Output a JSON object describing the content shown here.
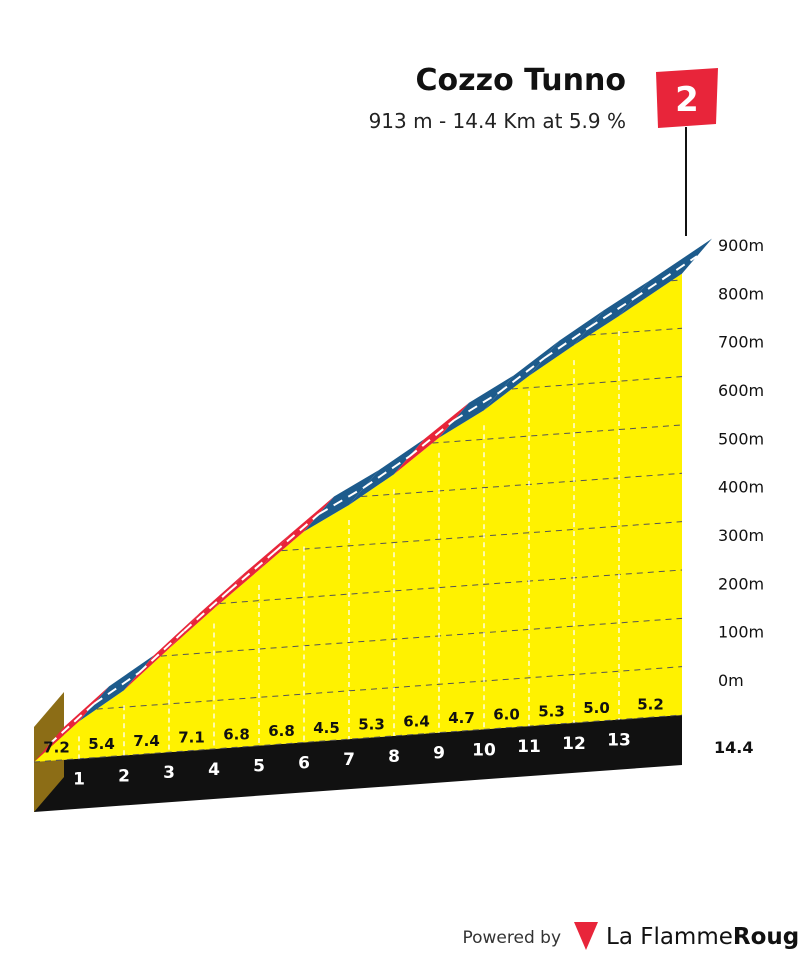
{
  "chart_data": {
    "type": "area",
    "title": "Cozzo Tunno",
    "subtitle": "913 m - 14.4 Km at 5.9 %",
    "category_badge": "2",
    "yticks": [
      "0m",
      "100m",
      "200m",
      "300m",
      "400m",
      "500m",
      "600m",
      "700m",
      "800m",
      "900m"
    ],
    "ylim": [
      0,
      913
    ],
    "xlim": [
      0,
      14.4
    ],
    "total_distance_label": "14.4",
    "km_markers": [
      "1",
      "2",
      "3",
      "4",
      "5",
      "6",
      "7",
      "8",
      "9",
      "10",
      "11",
      "12",
      "13"
    ],
    "segments": [
      {
        "km": 1,
        "gradient": 7.2,
        "label": "7.2",
        "color": "red"
      },
      {
        "km": 2,
        "gradient": 5.4,
        "label": "5.4",
        "color": "blue"
      },
      {
        "km": 3,
        "gradient": 7.4,
        "label": "7.4",
        "color": "red"
      },
      {
        "km": 4,
        "gradient": 7.1,
        "label": "7.1",
        "color": "red"
      },
      {
        "km": 5,
        "gradient": 6.8,
        "label": "6.8",
        "color": "red"
      },
      {
        "km": 6,
        "gradient": 6.8,
        "label": "6.8",
        "color": "red"
      },
      {
        "km": 7,
        "gradient": 4.5,
        "label": "4.5",
        "color": "blue"
      },
      {
        "km": 8,
        "gradient": 5.3,
        "label": "5.3",
        "color": "blue"
      },
      {
        "km": 9,
        "gradient": 6.4,
        "label": "6.4",
        "color": "red"
      },
      {
        "km": 10,
        "gradient": 4.7,
        "label": "4.7",
        "color": "blue"
      },
      {
        "km": 11,
        "gradient": 6.0,
        "label": "6.0",
        "color": "blue"
      },
      {
        "km": 12,
        "gradient": 5.3,
        "label": "5.3",
        "color": "blue"
      },
      {
        "km": 13,
        "gradient": 5.0,
        "label": "5.0",
        "color": "blue"
      },
      {
        "km": 14.4,
        "gradient": 5.2,
        "label": "5.2",
        "color": "blue"
      }
    ],
    "grid": true
  },
  "colors": {
    "fill": "#fff200",
    "red": "#e8253a",
    "blue": "#1d5b8c",
    "base": "#111111",
    "side": "#8c6d16",
    "flag": "#e8253a"
  },
  "branding": {
    "powered_by": "Powered by",
    "name_a": "La Flamme",
    "name_b": "Rouge"
  }
}
